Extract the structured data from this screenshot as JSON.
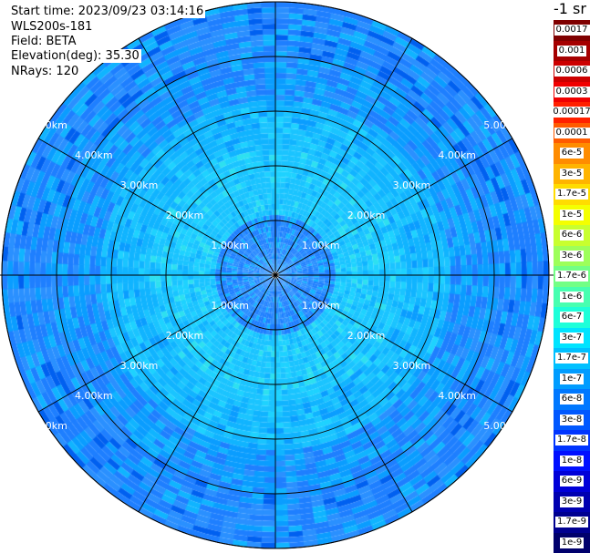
{
  "header": {
    "start_time": "Start time: 2023/09/23 03:14:16",
    "device": "WLS200s-181",
    "field": "Field: BETA",
    "elevation": "Elevation(deg): 35.30",
    "nrays": "NRays: 120"
  },
  "colorbar": {
    "title": "-1 sr",
    "labels": [
      "0.0017",
      "0.001",
      "0.0006",
      "0.0003",
      "0.00017",
      "0.0001",
      "6e-5",
      "3e-5",
      "1.7e-5",
      "1e-5",
      "6e-6",
      "3e-6",
      "1.7e-6",
      "1e-6",
      "6e-7",
      "3e-7",
      "1.7e-7",
      "1e-7",
      "6e-8",
      "3e-8",
      "1.7e-8",
      "1e-8",
      "6e-9",
      "3e-9",
      "1.7e-9",
      "1e-9"
    ],
    "colors": [
      "#7f0000",
      "#a50000",
      "#cc0000",
      "#f00000",
      "#ff2000",
      "#ff5a00",
      "#ff8c00",
      "#ffb400",
      "#ffdc00",
      "#f4ff00",
      "#c8ff2e",
      "#9dff5a",
      "#72ff85",
      "#47ffb0",
      "#1effd9",
      "#00e4ff",
      "#00c0ff",
      "#009cff",
      "#0078ff",
      "#0058ff",
      "#0034ff",
      "#0010ff",
      "#0000d8",
      "#0000b0",
      "#000090",
      "#00006c"
    ]
  },
  "rings": {
    "labels": [
      "1.00km",
      "2.00km",
      "3.00km",
      "4.00km",
      "5.00km"
    ],
    "values_km": [
      1,
      2,
      3,
      4,
      5
    ]
  },
  "scan": {
    "max_range_km": 5.0,
    "rays": 120,
    "palette": [
      "#1e7fff",
      "#2a90ff",
      "#0a9dff",
      "#10b4ff",
      "#1ac4ff",
      "#1ed2ff",
      "#2de0f0",
      "#3af0dc",
      "#0060f0",
      "#1f5fe8"
    ]
  }
}
